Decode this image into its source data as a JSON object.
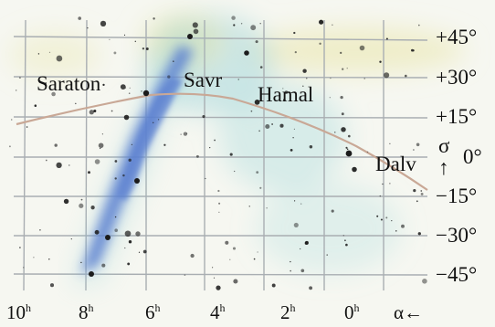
{
  "map": {
    "colors": {
      "background": "#f6f7f1",
      "grid": "#a9aeb2",
      "milky_way": "#5a7fd0",
      "ecliptic": "#c9a896",
      "stars": "#1b1b1b",
      "haze_yellow": "#e9e6a8",
      "haze_cyan": "#9fd6da"
    },
    "star_labels": {
      "saraton": "Saraton",
      "savr": "Savr",
      "hamal": "Hamal",
      "dalv": "Dalv"
    },
    "dec_axis": {
      "symbol": "σ",
      "arrow": "↑",
      "labels": [
        "+45°",
        "+30°",
        "+15°",
        "0°",
        "−15°",
        "−30°",
        "−45°"
      ]
    },
    "ra_axis": {
      "labels": [
        {
          "value": "10",
          "unit": "h"
        },
        {
          "value": "8",
          "unit": "h"
        },
        {
          "value": "6",
          "unit": "h"
        },
        {
          "value": "4",
          "unit": "h"
        },
        {
          "value": "2",
          "unit": "h"
        },
        {
          "value": "0",
          "unit": "h"
        }
      ],
      "alpha_label": "α←"
    }
  }
}
